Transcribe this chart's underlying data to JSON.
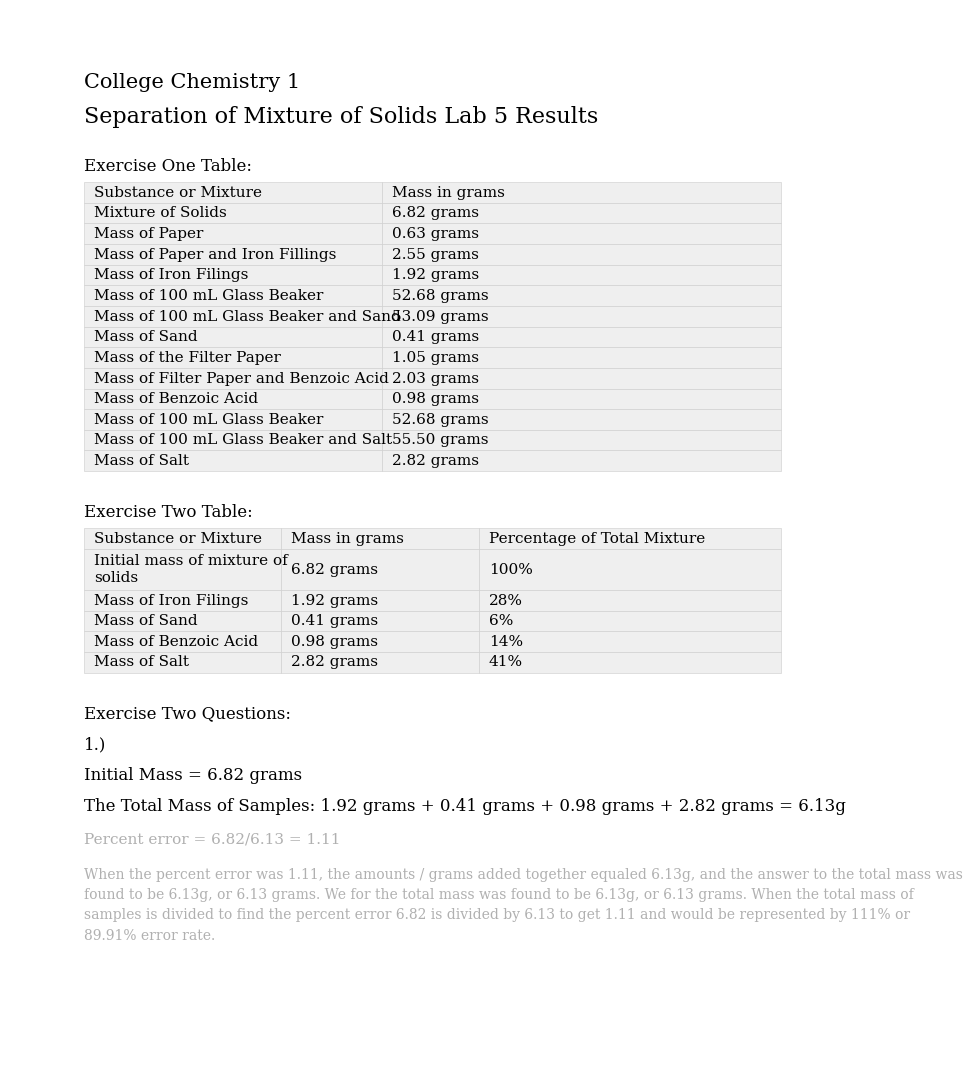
{
  "title1": "College Chemistry 1",
  "title2": "Separation of Mixture of Solids Lab 5 Results",
  "exercise_one_label": "Exercise One Table:",
  "table1_headers": [
    "Substance or Mixture",
    "Mass in grams"
  ],
  "table1_rows": [
    [
      "Mixture of Solids",
      "6.82 grams"
    ],
    [
      "Mass of Paper",
      "0.63 grams"
    ],
    [
      "Mass of Paper and Iron Fillings",
      "2.55 grams"
    ],
    [
      "Mass of Iron Filings",
      "1.92 grams"
    ],
    [
      "Mass of 100 mL Glass Beaker",
      "52.68 grams"
    ],
    [
      "Mass of 100 mL Glass Beaker and Sand",
      "53.09 grams"
    ],
    [
      "Mass of Sand",
      "0.41 grams"
    ],
    [
      "Mass of the Filter Paper",
      "1.05 grams"
    ],
    [
      "Mass of Filter Paper and Benzoic Acid",
      "2.03 grams"
    ],
    [
      "Mass of Benzoic Acid",
      "0.98 grams"
    ],
    [
      "Mass of 100 mL Glass Beaker",
      "52.68 grams"
    ],
    [
      "Mass of 100 mL Glass Beaker and Salt",
      "55.50 grams"
    ],
    [
      "Mass of Salt",
      "2.82 grams"
    ]
  ],
  "exercise_two_label": "Exercise Two Table:",
  "table2_headers": [
    "Substance or Mixture",
    "Mass in grams",
    "Percentage of Total Mixture"
  ],
  "table2_rows": [
    [
      "Initial mass of mixture of\nsolids",
      "6.82 grams",
      "100%"
    ],
    [
      "Mass of Iron Filings",
      "1.92 grams",
      "28%"
    ],
    [
      "Mass of Sand",
      "0.41 grams",
      "6%"
    ],
    [
      "Mass of Benzoic Acid",
      "0.98 grams",
      "14%"
    ],
    [
      "Mass of Salt",
      "2.82 grams",
      "41%"
    ]
  ],
  "exercise_two_questions_label": "Exercise Two Questions:",
  "q1_label": "1.)",
  "q1_line1": "Initial Mass = 6.82 grams",
  "q1_line2": "The Total Mass of Samples: 1.92 grams + 0.41 grams + 0.98 grams + 2.82 grams = 6.13g",
  "blurred_label": "Percent error = 6.82/6.13 = 1.11",
  "blurred_paragraph_lines": [
    "When the percent error was 1.11, the amounts / grams added together equaled 6.13g, and the answer to the total mass was",
    "found to be 6.13g, or 6.13 grams. We for the total mass was found to be 6.13g, or 6.13 grams. When the total mass of",
    "samples is divided to find the percent error 6.82 is divided by 6.13 to get 1.11 and would be represented by 111% or",
    "89.91% error rate."
  ],
  "background_color": "#ffffff",
  "table_bg_color": "#efefef",
  "table_border_color": "#cccccc",
  "text_color": "#000000",
  "blurred_color": "#b0b0b0",
  "font_size_title1": 15,
  "font_size_title2": 16,
  "font_size_section": 12,
  "font_size_table": 11,
  "font_size_body": 12,
  "font_size_blurred": 10
}
